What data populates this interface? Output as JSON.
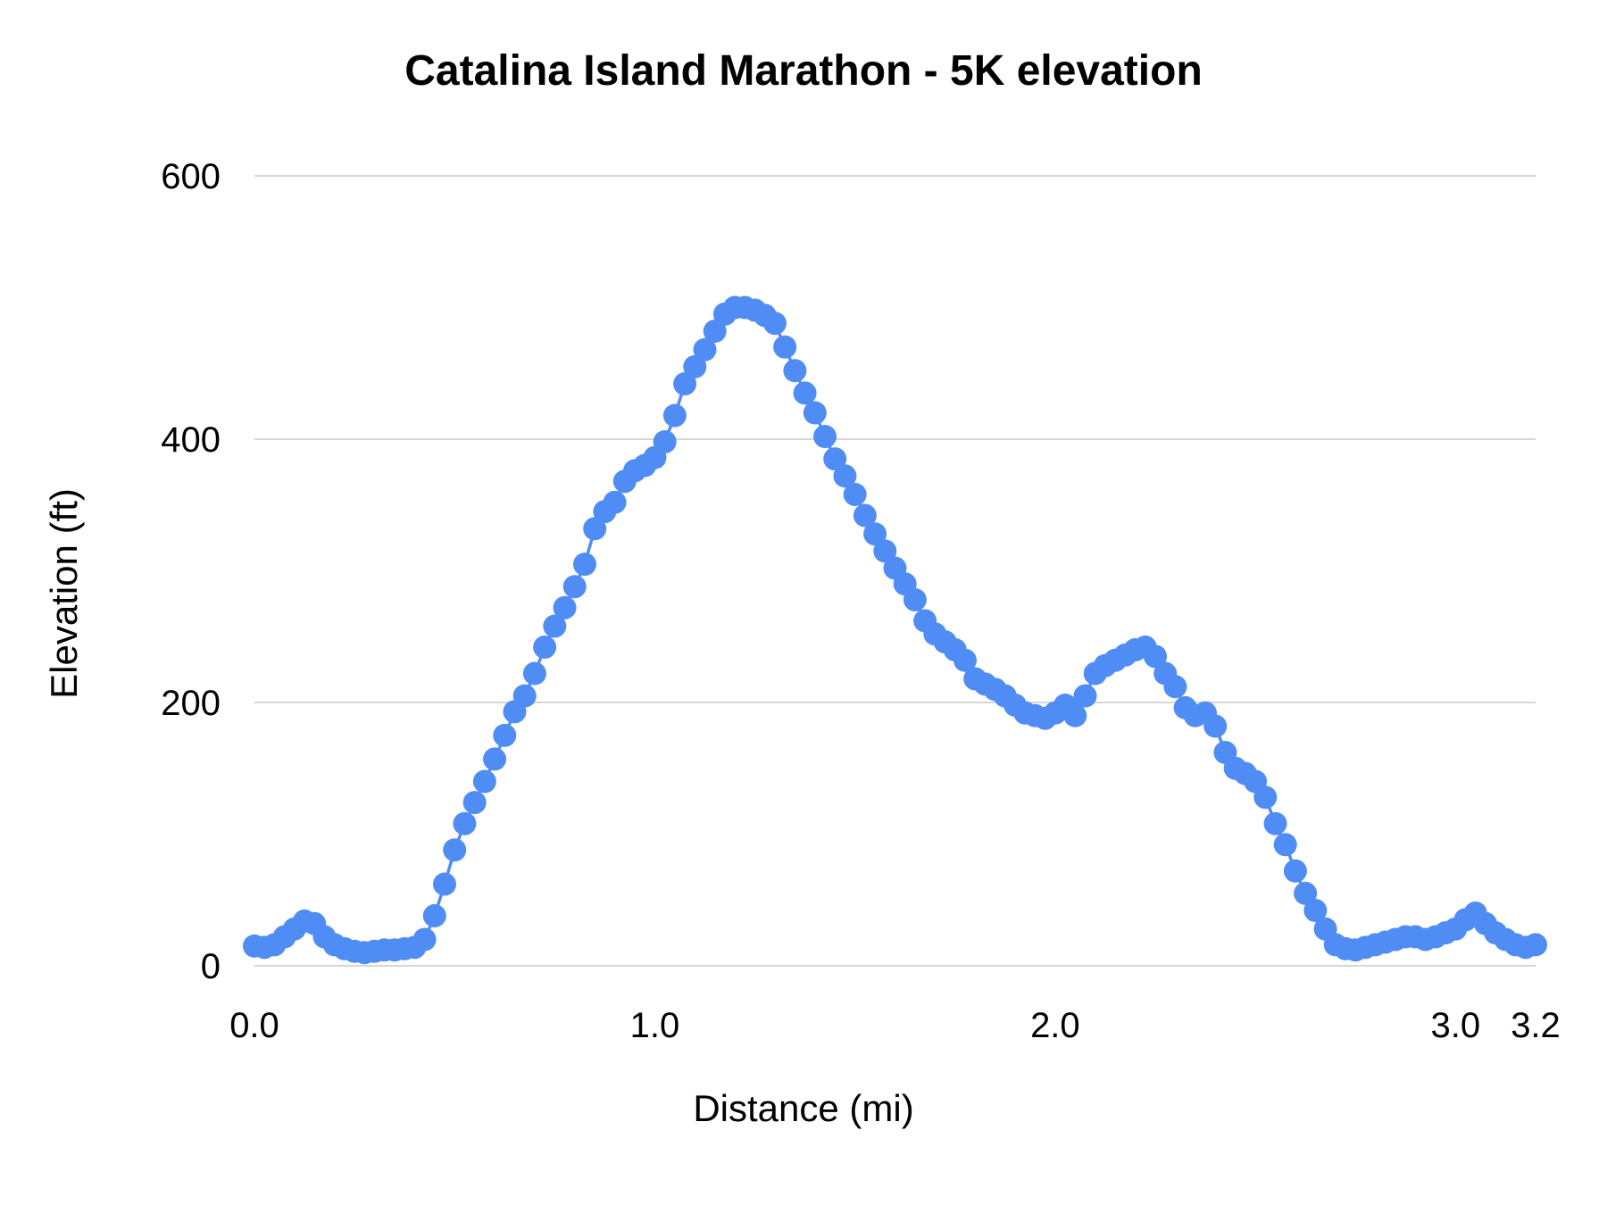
{
  "chart_data": {
    "type": "scatter",
    "title": "Catalina Island Marathon - 5K elevation",
    "xlabel": "Distance (mi)",
    "ylabel": "Elevation (ft)",
    "xlim": [
      0,
      3.2
    ],
    "ylim": [
      0,
      600
    ],
    "grid": "horizontal",
    "legend": "none",
    "point_color": "#4f8df5",
    "grid_color": "#d6d6d6",
    "text_color": "#000000",
    "x_ticks": [
      {
        "value": 0.0,
        "label": "0.0"
      },
      {
        "value": 1.0,
        "label": "1.0"
      },
      {
        "value": 2.0,
        "label": "2.0"
      },
      {
        "value": 3.0,
        "label": "3.0"
      },
      {
        "value": 3.2,
        "label": "3.2"
      }
    ],
    "y_ticks": [
      {
        "value": 0,
        "label": "0"
      },
      {
        "value": 200,
        "label": "200"
      },
      {
        "value": 400,
        "label": "400"
      },
      {
        "value": 600,
        "label": "600"
      }
    ],
    "x": [
      0.0,
      0.025,
      0.05,
      0.075,
      0.1,
      0.125,
      0.15,
      0.175,
      0.2,
      0.225,
      0.25,
      0.275,
      0.3,
      0.325,
      0.35,
      0.375,
      0.4,
      0.425,
      0.45,
      0.475,
      0.5,
      0.525,
      0.55,
      0.575,
      0.6,
      0.625,
      0.65,
      0.675,
      0.7,
      0.725,
      0.75,
      0.775,
      0.8,
      0.825,
      0.85,
      0.875,
      0.9,
      0.925,
      0.95,
      0.975,
      1.0,
      1.025,
      1.05,
      1.075,
      1.1,
      1.125,
      1.15,
      1.175,
      1.2,
      1.225,
      1.25,
      1.275,
      1.3,
      1.325,
      1.35,
      1.375,
      1.4,
      1.425,
      1.45,
      1.475,
      1.5,
      1.525,
      1.55,
      1.575,
      1.6,
      1.625,
      1.65,
      1.675,
      1.7,
      1.725,
      1.75,
      1.775,
      1.8,
      1.825,
      1.85,
      1.875,
      1.9,
      1.925,
      1.95,
      1.975,
      2.0,
      2.025,
      2.05,
      2.075,
      2.1,
      2.125,
      2.15,
      2.175,
      2.2,
      2.225,
      2.25,
      2.275,
      2.3,
      2.325,
      2.35,
      2.375,
      2.4,
      2.425,
      2.45,
      2.475,
      2.5,
      2.525,
      2.55,
      2.575,
      2.6,
      2.625,
      2.65,
      2.675,
      2.7,
      2.725,
      2.75,
      2.775,
      2.8,
      2.825,
      2.85,
      2.875,
      2.9,
      2.925,
      2.95,
      2.975,
      3.0,
      3.025,
      3.05,
      3.075,
      3.1,
      3.125,
      3.15,
      3.175,
      3.2
    ],
    "y": [
      15,
      14,
      16,
      22,
      28,
      34,
      32,
      22,
      16,
      13,
      11,
      10,
      11,
      12,
      12,
      13,
      14,
      20,
      38,
      62,
      88,
      108,
      124,
      140,
      157,
      175,
      193,
      205,
      222,
      242,
      258,
      272,
      288,
      305,
      332,
      345,
      352,
      368,
      376,
      380,
      386,
      398,
      418,
      442,
      455,
      468,
      482,
      495,
      500,
      500,
      498,
      494,
      488,
      470,
      452,
      435,
      420,
      402,
      385,
      372,
      358,
      342,
      328,
      315,
      302,
      290,
      278,
      262,
      252,
      246,
      240,
      232,
      218,
      214,
      210,
      205,
      198,
      192,
      190,
      188,
      192,
      198,
      190,
      205,
      222,
      228,
      232,
      236,
      240,
      242,
      235,
      222,
      212,
      196,
      190,
      192,
      182,
      162,
      150,
      146,
      140,
      128,
      108,
      92,
      72,
      55,
      42,
      28,
      16,
      13,
      12,
      14,
      16,
      18,
      20,
      22,
      22,
      20,
      22,
      25,
      28,
      35,
      40,
      32,
      25,
      20,
      16,
      14,
      16
    ]
  }
}
